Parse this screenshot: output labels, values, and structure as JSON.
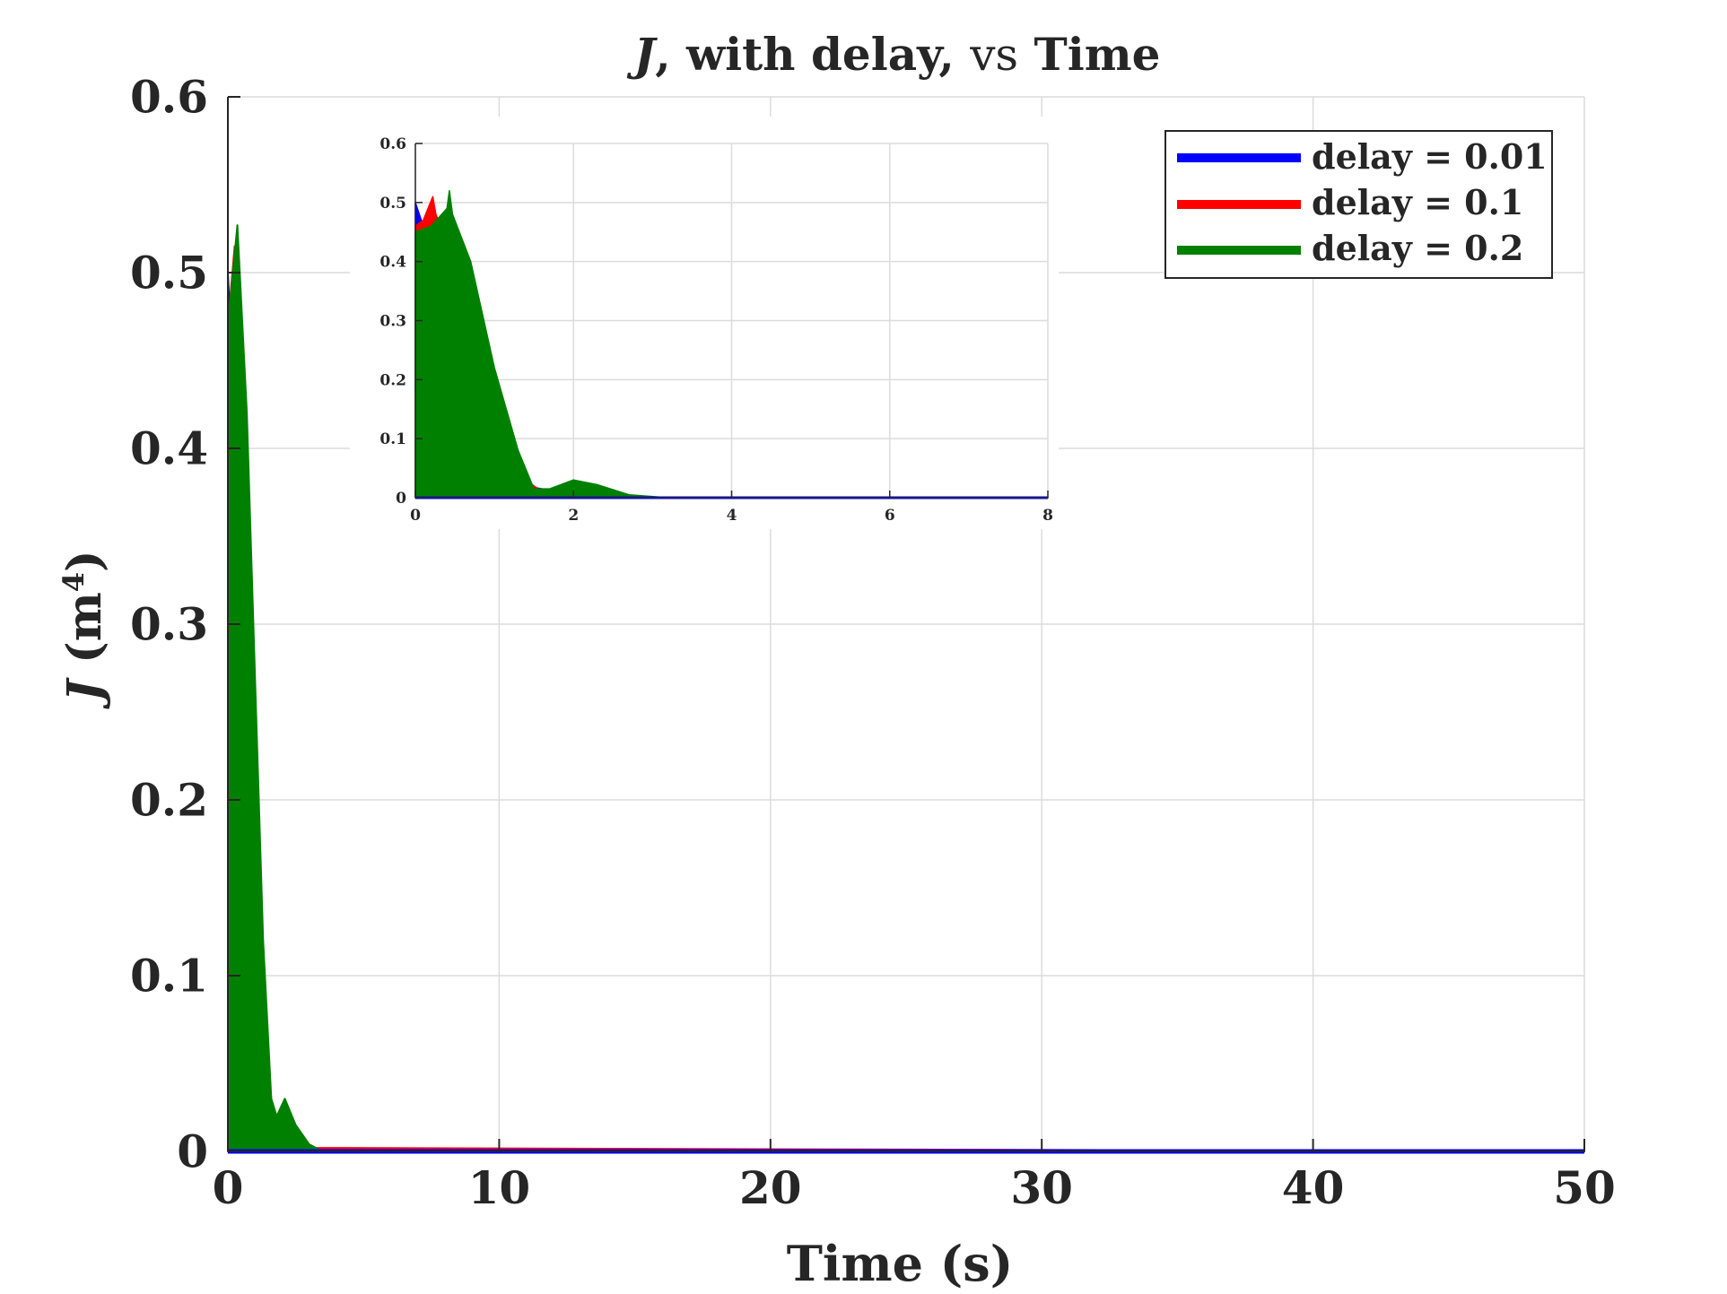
{
  "chart_data": [
    {
      "id": "main",
      "type": "line",
      "title": {
        "italic": "J",
        "bold_part": ", with delay, ",
        "normal_part": "vs",
        "tail": " Time"
      },
      "xlabel": "Time (s)",
      "ylabel": {
        "italic": "J",
        "text": " (m",
        "sup": "4",
        "close": ")"
      },
      "xlim": [
        0,
        50
      ],
      "ylim": [
        0,
        0.6
      ],
      "xticks": [
        0,
        10,
        20,
        30,
        40,
        50
      ],
      "xtick_labels": [
        "0",
        "10",
        "20",
        "30",
        "40",
        "50"
      ],
      "yticks": [
        0,
        0.1,
        0.2,
        0.3,
        0.4,
        0.5,
        0.6
      ],
      "ytick_labels": [
        "0",
        "0.1",
        "0.2",
        "0.3",
        "0.4",
        "0.5",
        "0.6"
      ],
      "grid": true,
      "legend": "top-right",
      "series": [
        {
          "name": "delay = 0.01",
          "color": "#0000ff",
          "peak": 0.5,
          "envelope_upper": [
            [
              0,
              0.5
            ],
            [
              0.3,
              0.4
            ],
            [
              0.6,
              0.28
            ],
            [
              0.9,
              0.16
            ],
            [
              1.2,
              0.06
            ],
            [
              1.5,
              0.02
            ],
            [
              2.0,
              0.01
            ],
            [
              2.5,
              0.005
            ],
            [
              3.0,
              0.002
            ],
            [
              4.0,
              0.0005
            ],
            [
              50,
              0.0
            ]
          ],
          "envelope_lower": [
            [
              0,
              0.18
            ],
            [
              0.3,
              0.1
            ],
            [
              0.6,
              0.05
            ],
            [
              0.9,
              0.02
            ],
            [
              1.2,
              0.005
            ],
            [
              1.5,
              0.002
            ],
            [
              2.0,
              0.001
            ],
            [
              3.0,
              0.0
            ],
            [
              50,
              0.0
            ]
          ]
        },
        {
          "name": "delay = 0.1",
          "color": "#ff0000",
          "peak": 0.515,
          "envelope_upper": [
            [
              0,
              0.47
            ],
            [
              0.25,
              0.515
            ],
            [
              0.6,
              0.38
            ],
            [
              1.0,
              0.2
            ],
            [
              1.4,
              0.06
            ],
            [
              1.7,
              0.015
            ],
            [
              2.0,
              0.018
            ],
            [
              2.4,
              0.008
            ],
            [
              3.0,
              0.002
            ],
            [
              50,
              0.0
            ]
          ],
          "envelope_lower": [
            [
              0,
              0.0
            ],
            [
              50,
              0.0
            ]
          ]
        },
        {
          "name": "delay = 0.2",
          "color": "#008000",
          "peak": 0.527,
          "envelope_upper": [
            [
              0,
              0.47
            ],
            [
              0.35,
              0.527
            ],
            [
              0.7,
              0.42
            ],
            [
              1.0,
              0.27
            ],
            [
              1.3,
              0.12
            ],
            [
              1.6,
              0.03
            ],
            [
              1.8,
              0.02
            ],
            [
              2.1,
              0.03
            ],
            [
              2.5,
              0.015
            ],
            [
              3.0,
              0.004
            ],
            [
              3.5,
              0.0
            ],
            [
              50,
              0.0
            ]
          ],
          "envelope_lower": [
            [
              0,
              0.0
            ],
            [
              50,
              0.0
            ]
          ]
        }
      ]
    },
    {
      "id": "inset",
      "type": "line",
      "xlim": [
        0,
        8
      ],
      "ylim": [
        0,
        0.6
      ],
      "xticks": [
        0,
        2,
        4,
        6,
        8
      ],
      "xtick_labels": [
        "0",
        "2",
        "4",
        "6",
        "8"
      ],
      "yticks": [
        0,
        0.1,
        0.2,
        0.3,
        0.4,
        0.5,
        0.6
      ],
      "ytick_labels": [
        "0",
        "0.1",
        "0.2",
        "0.3",
        "0.4",
        "0.5",
        "0.6"
      ],
      "grid": true,
      "series": [
        {
          "name": "delay = 0.01",
          "color": "#0000ff",
          "envelope_upper": [
            [
              0,
              0.5
            ],
            [
              0.2,
              0.42
            ],
            [
              0.5,
              0.3
            ],
            [
              0.8,
              0.16
            ],
            [
              1.1,
              0.06
            ],
            [
              1.4,
              0.02
            ],
            [
              1.8,
              0.01
            ],
            [
              2.2,
              0.006
            ],
            [
              2.6,
              0.002
            ],
            [
              3.0,
              0.0
            ],
            [
              8,
              0.0
            ]
          ],
          "envelope_lower": [
            [
              0,
              0.18
            ],
            [
              0.2,
              0.12
            ],
            [
              0.5,
              0.06
            ],
            [
              0.8,
              0.025
            ],
            [
              1.1,
              0.008
            ],
            [
              1.4,
              0.002
            ],
            [
              2.0,
              0.0
            ],
            [
              8,
              0.0
            ]
          ]
        },
        {
          "name": "delay = 0.1",
          "color": "#ff0000",
          "envelope_upper": [
            [
              0,
              0.46
            ],
            [
              0.1,
              0.47
            ],
            [
              0.22,
              0.51
            ],
            [
              0.26,
              0.48
            ],
            [
              0.5,
              0.4
            ],
            [
              0.8,
              0.26
            ],
            [
              1.1,
              0.12
            ],
            [
              1.4,
              0.03
            ],
            [
              1.6,
              0.01
            ],
            [
              2.0,
              0.015
            ],
            [
              2.4,
              0.008
            ],
            [
              2.8,
              0.002
            ],
            [
              3.2,
              0.0
            ],
            [
              8,
              0.0
            ]
          ],
          "envelope_lower": [
            [
              0,
              0.0
            ],
            [
              8,
              0.0
            ]
          ]
        },
        {
          "name": "delay = 0.2",
          "color": "#008000",
          "envelope_upper": [
            [
              0,
              0.45
            ],
            [
              0.2,
              0.46
            ],
            [
              0.4,
              0.49
            ],
            [
              0.43,
              0.52
            ],
            [
              0.47,
              0.48
            ],
            [
              0.7,
              0.4
            ],
            [
              1.0,
              0.22
            ],
            [
              1.3,
              0.08
            ],
            [
              1.5,
              0.015
            ],
            [
              1.7,
              0.015
            ],
            [
              2.0,
              0.03
            ],
            [
              2.3,
              0.022
            ],
            [
              2.7,
              0.005
            ],
            [
              3.2,
              0.0
            ],
            [
              8,
              0.0
            ]
          ],
          "envelope_lower": [
            [
              0,
              0.0
            ],
            [
              8,
              0.0
            ]
          ]
        }
      ]
    }
  ]
}
